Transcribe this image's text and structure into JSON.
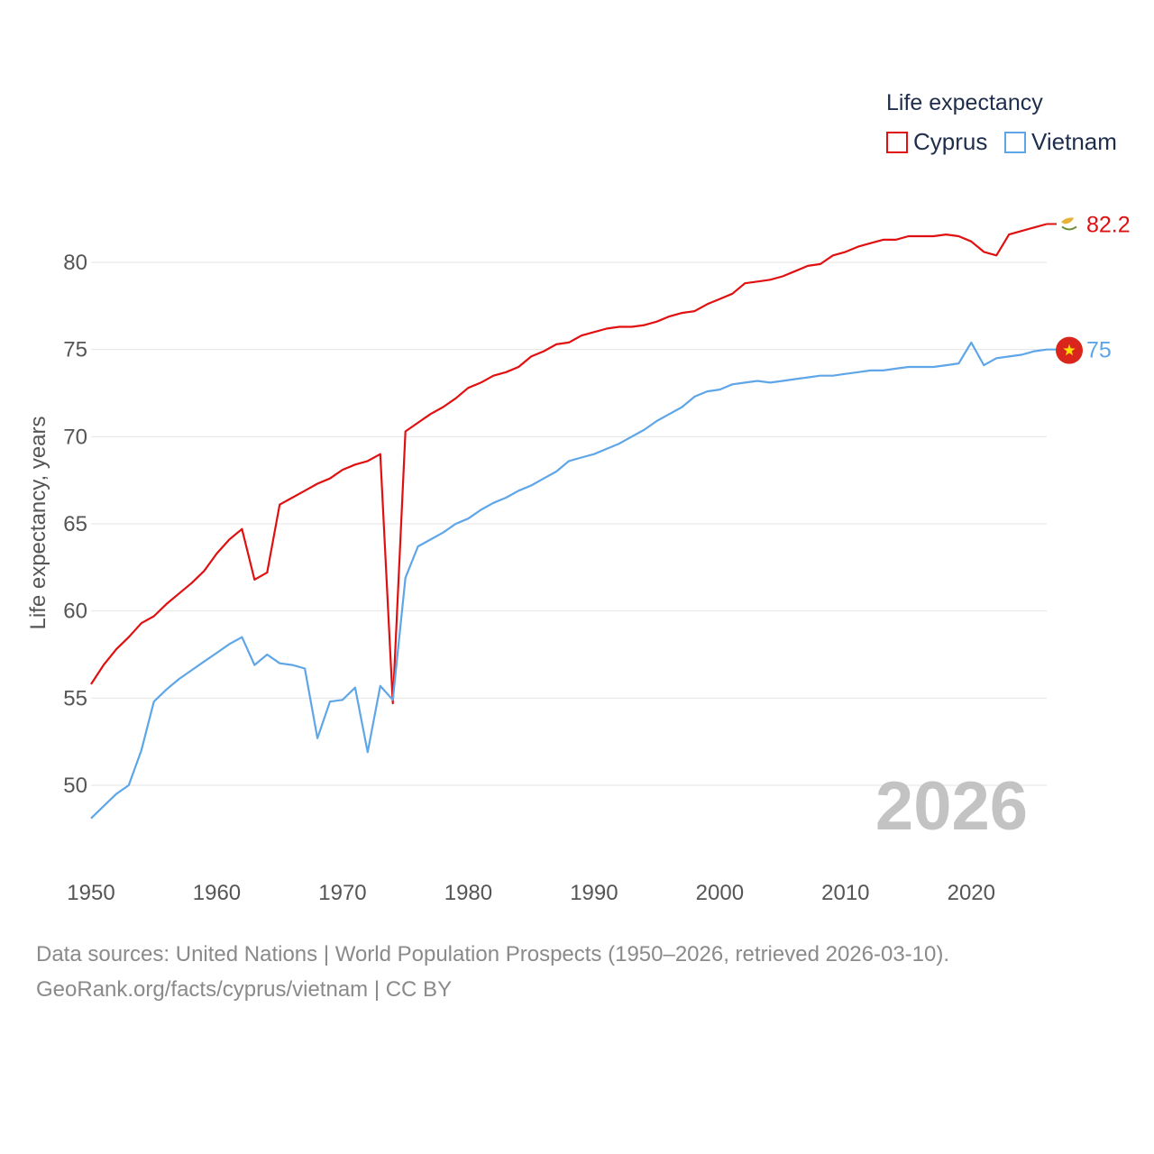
{
  "legend": {
    "title": "Life expectancy",
    "items": [
      {
        "name": "Cyprus",
        "color": "#e01010"
      },
      {
        "name": "Vietnam",
        "color": "#5ea6e8"
      }
    ]
  },
  "year_watermark": "2026",
  "source": {
    "line1": "Data sources: United Nations | World Population Prospects (1950–2026, retrieved 2026-03-10).",
    "line2": "GeoRank.org/facts/cyprus/vietnam | CC BY"
  },
  "chart_data": {
    "type": "line",
    "title": "",
    "xlabel": "",
    "ylabel": "Life expectancy, years",
    "xlim": [
      1950,
      2026
    ],
    "ylim": [
      46.5,
      84
    ],
    "x_ticks": [
      1950,
      1960,
      1970,
      1980,
      1990,
      2000,
      2010,
      2020
    ],
    "y_ticks": [
      50,
      55,
      60,
      65,
      70,
      75,
      80
    ],
    "grid": true,
    "legend_position": "top-right",
    "x": [
      1950,
      1951,
      1952,
      1953,
      1954,
      1955,
      1956,
      1957,
      1958,
      1959,
      1960,
      1961,
      1962,
      1963,
      1964,
      1965,
      1966,
      1967,
      1968,
      1969,
      1970,
      1971,
      1972,
      1973,
      1974,
      1975,
      1976,
      1977,
      1978,
      1979,
      1980,
      1981,
      1982,
      1983,
      1984,
      1985,
      1986,
      1987,
      1988,
      1989,
      1990,
      1991,
      1992,
      1993,
      1994,
      1995,
      1996,
      1997,
      1998,
      1999,
      2000,
      2001,
      2002,
      2003,
      2004,
      2005,
      2006,
      2007,
      2008,
      2009,
      2010,
      2011,
      2012,
      2013,
      2014,
      2015,
      2016,
      2017,
      2018,
      2019,
      2020,
      2021,
      2022,
      2023,
      2024,
      2025,
      2026
    ],
    "series": [
      {
        "name": "Cyprus",
        "color": "#e01010",
        "end_label": "82.2",
        "end_icon": "cyprus-flag-icon",
        "values": [
          55.8,
          56.9,
          57.8,
          58.5,
          59.3,
          59.7,
          60.4,
          61.0,
          61.6,
          62.3,
          63.3,
          64.1,
          64.7,
          61.8,
          62.2,
          66.1,
          66.5,
          66.9,
          67.3,
          67.6,
          68.1,
          68.4,
          68.6,
          69.0,
          54.7,
          70.3,
          70.8,
          71.3,
          71.7,
          72.2,
          72.8,
          73.1,
          73.5,
          73.7,
          74.0,
          74.6,
          74.9,
          75.3,
          75.4,
          75.8,
          76.0,
          76.2,
          76.3,
          76.3,
          76.4,
          76.6,
          76.9,
          77.1,
          77.2,
          77.6,
          77.9,
          78.2,
          78.8,
          78.9,
          79.0,
          79.2,
          79.5,
          79.8,
          79.9,
          80.4,
          80.6,
          80.9,
          81.1,
          81.3,
          81.3,
          81.5,
          81.5,
          81.5,
          81.6,
          81.5,
          81.2,
          80.6,
          80.4,
          81.6,
          81.8,
          82.0,
          82.2
        ]
      },
      {
        "name": "Vietnam",
        "color": "#5ea6e8",
        "end_label": "75",
        "end_icon": "vietnam-flag-icon",
        "values": [
          48.1,
          48.8,
          49.5,
          50.0,
          52.0,
          54.8,
          55.5,
          56.1,
          56.6,
          57.1,
          57.6,
          58.1,
          58.5,
          56.9,
          57.5,
          57.0,
          56.9,
          56.7,
          52.7,
          54.8,
          54.9,
          55.6,
          51.9,
          55.7,
          54.9,
          61.9,
          63.7,
          64.1,
          64.5,
          65.0,
          65.3,
          65.8,
          66.2,
          66.5,
          66.9,
          67.2,
          67.6,
          68.0,
          68.6,
          68.8,
          69.0,
          69.3,
          69.6,
          70.0,
          70.4,
          70.9,
          71.3,
          71.7,
          72.3,
          72.6,
          72.7,
          73.0,
          73.1,
          73.2,
          73.1,
          73.2,
          73.3,
          73.4,
          73.5,
          73.5,
          73.6,
          73.7,
          73.8,
          73.8,
          73.9,
          74.0,
          74.0,
          74.0,
          74.1,
          74.2,
          75.4,
          74.1,
          74.5,
          74.6,
          74.7,
          74.9,
          75.0
        ]
      }
    ]
  }
}
